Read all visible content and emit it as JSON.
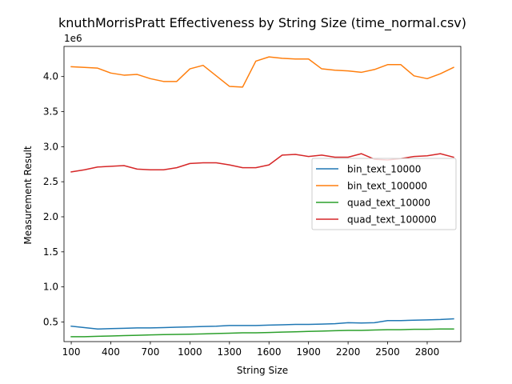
{
  "chart_data": {
    "type": "line",
    "title": "knuthMorrisPratt Effectiveness by String Size (time_normal.csv)",
    "xlabel": "String Size",
    "ylabel": "Measurement Result",
    "y_offset_label": "1e6",
    "xlim": [
      45,
      3055
    ],
    "ylim": [
      0.22,
      4.43
    ],
    "y_scale": 1000000,
    "x_ticks": [
      100,
      400,
      700,
      1000,
      1300,
      1600,
      1900,
      2200,
      2500,
      2800
    ],
    "x_tick_labels": [
      "100",
      "400",
      "700",
      "1000",
      "1300",
      "1600",
      "1900",
      "2200",
      "2500",
      "2800"
    ],
    "y_ticks": [
      0.5,
      1.0,
      1.5,
      2.0,
      2.5,
      3.0,
      3.5,
      4.0
    ],
    "y_tick_labels": [
      "0.5",
      "1.0",
      "1.5",
      "2.0",
      "2.5",
      "3.0",
      "3.5",
      "4.0"
    ],
    "grid": false,
    "legend_position": "center-right",
    "x": [
      100,
      200,
      300,
      400,
      500,
      600,
      700,
      800,
      900,
      1000,
      1100,
      1200,
      1300,
      1400,
      1500,
      1600,
      1700,
      1800,
      1900,
      2000,
      2100,
      2200,
      2300,
      2400,
      2500,
      2600,
      2700,
      2800,
      2900,
      3000
    ],
    "series": [
      {
        "name": "bin_text_10000",
        "color": "#1f77b4",
        "values": [
          0.44,
          0.42,
          0.4,
          0.405,
          0.41,
          0.415,
          0.415,
          0.42,
          0.425,
          0.43,
          0.435,
          0.44,
          0.45,
          0.45,
          0.45,
          0.455,
          0.46,
          0.465,
          0.465,
          0.47,
          0.475,
          0.49,
          0.485,
          0.49,
          0.52,
          0.52,
          0.525,
          0.53,
          0.535,
          0.545
        ]
      },
      {
        "name": "bin_text_100000",
        "color": "#ff7f0e",
        "values": [
          4.14,
          4.13,
          4.12,
          4.05,
          4.02,
          4.03,
          3.97,
          3.93,
          3.93,
          4.11,
          4.16,
          4.01,
          3.86,
          3.85,
          4.22,
          4.28,
          4.26,
          4.25,
          4.25,
          4.11,
          4.09,
          4.08,
          4.06,
          4.1,
          4.17,
          4.17,
          4.01,
          3.97,
          4.04,
          4.13
        ]
      },
      {
        "name": "quad_text_10000",
        "color": "#2ca02c",
        "values": [
          0.29,
          0.29,
          0.295,
          0.3,
          0.305,
          0.31,
          0.315,
          0.32,
          0.322,
          0.325,
          0.33,
          0.335,
          0.34,
          0.345,
          0.345,
          0.35,
          0.355,
          0.36,
          0.365,
          0.37,
          0.375,
          0.38,
          0.38,
          0.385,
          0.39,
          0.39,
          0.395,
          0.395,
          0.4,
          0.4
        ]
      },
      {
        "name": "quad_text_100000",
        "color": "#d62728",
        "values": [
          2.64,
          2.67,
          2.71,
          2.72,
          2.73,
          2.68,
          2.67,
          2.67,
          2.7,
          2.76,
          2.77,
          2.77,
          2.74,
          2.7,
          2.7,
          2.74,
          2.88,
          2.89,
          2.86,
          2.88,
          2.85,
          2.85,
          2.9,
          2.82,
          2.81,
          2.83,
          2.86,
          2.87,
          2.9,
          2.85
        ]
      }
    ]
  }
}
